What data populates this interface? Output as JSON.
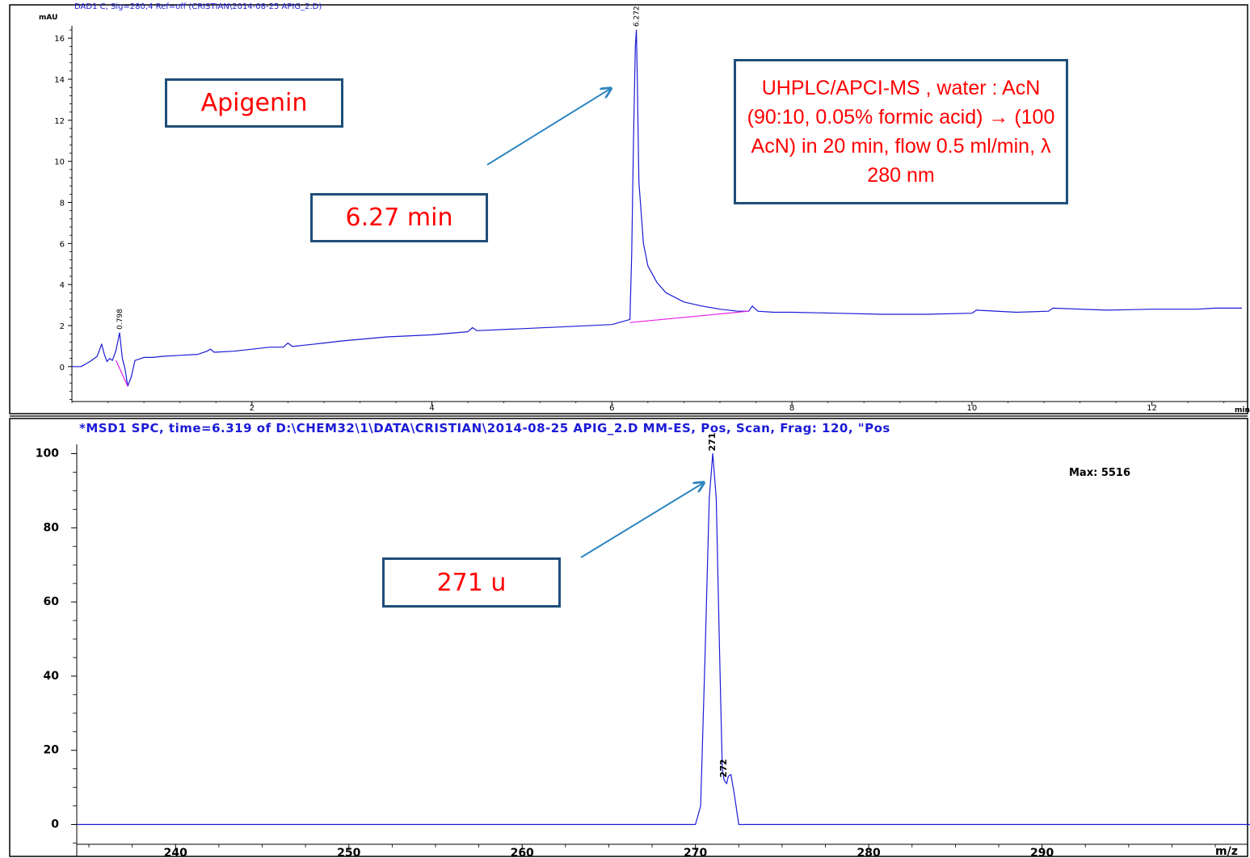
{
  "colors": {
    "trace": "#1b1bd6",
    "baseline": "#e61ee6",
    "arrow": "#2e86c1",
    "box_border": "#1f4e79",
    "box_text": "#ff0000"
  },
  "top": {
    "header": "DAD1 C, Sig=280,4 Ref=off (CRISTIAN\\2014-08-25 APIG_2.D)",
    "y_unit": "mAU",
    "x_unit": "min",
    "peak_labels": [
      "0.798",
      "6.272"
    ]
  },
  "bottom": {
    "header": "*MSD1 SPC, time=6.319 of D:\\CHEM32\\1\\DATA\\CRISTIAN\\2014-08-25 APIG_2.D    MM-ES, Pos, Scan, Frag: 120, \"Pos",
    "max_label": "Max:  5516",
    "x_unit": "m/z",
    "peak_labels": [
      "271",
      "272"
    ]
  },
  "annotations": {
    "compound": "Apigenin",
    "retention": "6.27 min",
    "conditions": "UHPLC/APCI-MS  , water : AcN  (90:10, 0.05% formic acid) → (100 AcN) in 20 min, flow 0.5 ml/min, λ 280 nm",
    "mass": "271 u"
  },
  "chart_data": [
    {
      "type": "line",
      "xlabel": "min",
      "ylabel": "mAU",
      "xlim": [
        0,
        13.0
      ],
      "ylim": [
        -1.7,
        16.6
      ],
      "x_ticks": [
        2,
        4,
        6,
        8,
        10,
        12
      ],
      "y_ticks": [
        0,
        2,
        4,
        6,
        8,
        10,
        12,
        14,
        16
      ],
      "grid": false,
      "series": [
        {
          "x": [
            0.0,
            0.1,
            0.2,
            0.28,
            0.33,
            0.36,
            0.39,
            0.42,
            0.45,
            0.49,
            0.53,
            0.56,
            0.59,
            0.62,
            0.66,
            0.7,
            0.8,
            0.9,
            1.0,
            1.2,
            1.4,
            1.5,
            1.54,
            1.58,
            1.8,
            2.0,
            2.2,
            2.35,
            2.4,
            2.45,
            2.8,
            3.0,
            3.5,
            4.0,
            4.4,
            4.45,
            4.5,
            5.0,
            5.5,
            6.0,
            6.2,
            6.22,
            6.24,
            6.26,
            6.272,
            6.28,
            6.3,
            6.35,
            6.4,
            6.5,
            6.6,
            6.8,
            7.0,
            7.2,
            7.4,
            7.52,
            7.56,
            7.62,
            7.8,
            8.0,
            8.5,
            9.0,
            9.5,
            10.0,
            10.05,
            10.5,
            10.85,
            10.9,
            11.5,
            12.0,
            12.5,
            12.7,
            13.0
          ],
          "y": [
            0.0,
            0.0,
            0.25,
            0.5,
            1.1,
            0.6,
            0.25,
            0.4,
            0.3,
            0.8,
            1.65,
            0.4,
            -0.1,
            -0.95,
            -0.5,
            0.3,
            0.45,
            0.45,
            0.5,
            0.55,
            0.6,
            0.75,
            0.85,
            0.7,
            0.75,
            0.85,
            0.95,
            0.95,
            1.15,
            0.98,
            1.15,
            1.25,
            1.45,
            1.55,
            1.7,
            1.9,
            1.75,
            1.85,
            1.95,
            2.05,
            2.3,
            5.5,
            11.0,
            15.6,
            16.4,
            14.5,
            9.0,
            6.0,
            4.9,
            4.1,
            3.6,
            3.15,
            2.95,
            2.8,
            2.7,
            2.7,
            2.95,
            2.7,
            2.65,
            2.65,
            2.6,
            2.55,
            2.55,
            2.6,
            2.75,
            2.65,
            2.7,
            2.85,
            2.75,
            2.8,
            2.8,
            2.85,
            2.85
          ]
        }
      ]
    },
    {
      "type": "line",
      "xlabel": "m/z",
      "ylabel": "",
      "xlim": [
        234.3,
        302.0
      ],
      "ylim": [
        -8.6,
        102.5
      ],
      "x_ticks": [
        240,
        250,
        260,
        270,
        280,
        290
      ],
      "y_ticks": [
        0,
        20,
        40,
        60,
        80,
        100
      ],
      "grid": false,
      "series": [
        {
          "x": [
            234.3,
            270.0,
            270.3,
            270.55,
            270.8,
            271.0,
            271.2,
            271.4,
            271.55,
            271.65,
            271.8,
            271.9,
            272.05,
            272.25,
            272.5,
            302.0
          ],
          "y": [
            0,
            0,
            5,
            45,
            88,
            100,
            88,
            45,
            15,
            12,
            11,
            13,
            13.5,
            8,
            0,
            0
          ]
        }
      ]
    }
  ]
}
